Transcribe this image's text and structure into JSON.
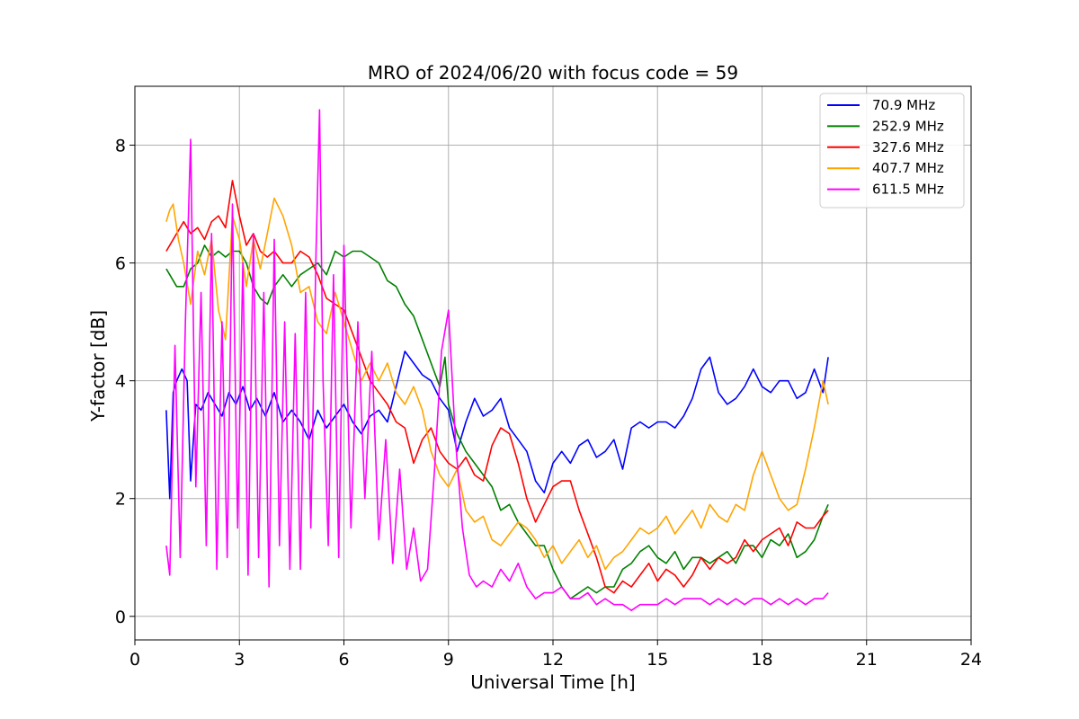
{
  "chart_data": {
    "type": "line",
    "title": "MRO of 2024/06/20 with focus code = 59",
    "xlabel": "Universal Time [h]",
    "ylabel": "Y-factor [dB]",
    "xlim": [
      0,
      24
    ],
    "ylim": [
      -0.4,
      9.0
    ],
    "xticks": [
      0,
      3,
      6,
      9,
      12,
      15,
      18,
      21,
      24
    ],
    "yticks": [
      0,
      2,
      4,
      6,
      8
    ],
    "grid": true,
    "legend": "top-right",
    "series": [
      {
        "name": " 70.9 MHz",
        "color": "#0000ff",
        "x": [
          0.9,
          1.0,
          1.1,
          1.2,
          1.35,
          1.5,
          1.6,
          1.75,
          1.9,
          2.1,
          2.3,
          2.5,
          2.7,
          2.9,
          3.1,
          3.3,
          3.5,
          3.75,
          4.0,
          4.25,
          4.5,
          4.75,
          5.0,
          5.25,
          5.5,
          5.75,
          6.0,
          6.25,
          6.5,
          6.75,
          7.0,
          7.25,
          7.5,
          7.75,
          8.0,
          8.25,
          8.5,
          8.75,
          9.0,
          9.25,
          9.5,
          9.75,
          10.0,
          10.25,
          10.5,
          10.75,
          11.0,
          11.25,
          11.5,
          11.75,
          12.0,
          12.25,
          12.5,
          12.75,
          13.0,
          13.25,
          13.5,
          13.75,
          14.0,
          14.25,
          14.5,
          14.75,
          15.0,
          15.25,
          15.5,
          15.75,
          16.0,
          16.25,
          16.5,
          16.75,
          17.0,
          17.25,
          17.5,
          17.75,
          18.0,
          18.25,
          18.5,
          18.75,
          19.0,
          19.25,
          19.5,
          19.75,
          19.9
        ],
        "y": [
          3.5,
          2.0,
          3.8,
          4.0,
          4.2,
          4.0,
          2.3,
          3.6,
          3.5,
          3.8,
          3.6,
          3.4,
          3.8,
          3.6,
          3.9,
          3.5,
          3.7,
          3.4,
          3.8,
          3.3,
          3.5,
          3.3,
          3.0,
          3.5,
          3.2,
          3.4,
          3.6,
          3.3,
          3.1,
          3.4,
          3.5,
          3.3,
          3.9,
          4.5,
          4.3,
          4.1,
          4.0,
          3.7,
          3.5,
          2.8,
          3.3,
          3.7,
          3.4,
          3.5,
          3.7,
          3.2,
          3.0,
          2.8,
          2.3,
          2.1,
          2.6,
          2.8,
          2.6,
          2.9,
          3.0,
          2.7,
          2.8,
          3.0,
          2.5,
          3.2,
          3.3,
          3.2,
          3.3,
          3.3,
          3.2,
          3.4,
          3.7,
          4.2,
          4.4,
          3.8,
          3.6,
          3.7,
          3.9,
          4.2,
          3.9,
          3.8,
          4.0,
          4.0,
          3.7,
          3.8,
          4.2,
          3.8,
          4.4
        ]
      },
      {
        "name": "252.9 MHz",
        "color": "#008000",
        "x": [
          0.9,
          1.0,
          1.2,
          1.4,
          1.6,
          1.8,
          2.0,
          2.2,
          2.4,
          2.6,
          2.8,
          3.0,
          3.2,
          3.4,
          3.6,
          3.8,
          4.0,
          4.25,
          4.5,
          4.75,
          5.0,
          5.25,
          5.5,
          5.75,
          6.0,
          6.25,
          6.5,
          6.75,
          7.0,
          7.25,
          7.5,
          7.75,
          8.0,
          8.25,
          8.5,
          8.75,
          8.9,
          9.0,
          9.25,
          9.5,
          9.75,
          10.0,
          10.25,
          10.5,
          10.75,
          11.0,
          11.25,
          11.5,
          11.75,
          12.0,
          12.25,
          12.5,
          12.75,
          13.0,
          13.25,
          13.5,
          13.75,
          14.0,
          14.25,
          14.5,
          14.75,
          15.0,
          15.25,
          15.5,
          15.75,
          16.0,
          16.25,
          16.5,
          16.75,
          17.0,
          17.25,
          17.5,
          17.75,
          18.0,
          18.25,
          18.5,
          18.75,
          19.0,
          19.25,
          19.5,
          19.75,
          19.9
        ],
        "y": [
          5.9,
          5.8,
          5.6,
          5.6,
          5.9,
          6.0,
          6.3,
          6.1,
          6.2,
          6.1,
          6.2,
          6.2,
          6.0,
          5.6,
          5.4,
          5.3,
          5.6,
          5.8,
          5.6,
          5.8,
          5.9,
          6.0,
          5.8,
          6.2,
          6.1,
          6.2,
          6.2,
          6.1,
          6.0,
          5.7,
          5.6,
          5.3,
          5.1,
          4.7,
          4.3,
          3.9,
          4.4,
          3.6,
          3.1,
          2.8,
          2.6,
          2.4,
          2.2,
          1.8,
          1.9,
          1.6,
          1.4,
          1.2,
          1.2,
          0.8,
          0.5,
          0.3,
          0.4,
          0.5,
          0.4,
          0.5,
          0.5,
          0.8,
          0.9,
          1.1,
          1.2,
          1.0,
          0.9,
          1.1,
          0.8,
          1.0,
          1.0,
          0.9,
          1.0,
          1.1,
          0.9,
          1.2,
          1.2,
          1.0,
          1.3,
          1.2,
          1.4,
          1.0,
          1.1,
          1.3,
          1.7,
          1.9
        ]
      },
      {
        "name": "327.6 MHz",
        "color": "#ff0000",
        "x": [
          0.9,
          1.0,
          1.2,
          1.4,
          1.6,
          1.8,
          2.0,
          2.2,
          2.4,
          2.6,
          2.8,
          3.0,
          3.2,
          3.4,
          3.6,
          3.8,
          4.0,
          4.25,
          4.5,
          4.75,
          5.0,
          5.25,
          5.5,
          5.75,
          6.0,
          6.25,
          6.5,
          6.75,
          7.0,
          7.25,
          7.5,
          7.75,
          8.0,
          8.25,
          8.5,
          8.75,
          9.0,
          9.25,
          9.5,
          9.75,
          10.0,
          10.25,
          10.5,
          10.75,
          11.0,
          11.25,
          11.5,
          11.75,
          12.0,
          12.25,
          12.5,
          12.75,
          13.0,
          13.25,
          13.5,
          13.75,
          14.0,
          14.25,
          14.5,
          14.75,
          15.0,
          15.25,
          15.5,
          15.75,
          16.0,
          16.25,
          16.5,
          16.75,
          17.0,
          17.25,
          17.5,
          17.75,
          18.0,
          18.25,
          18.5,
          18.75,
          19.0,
          19.25,
          19.5,
          19.75,
          19.9
        ],
        "y": [
          6.2,
          6.3,
          6.5,
          6.7,
          6.5,
          6.6,
          6.4,
          6.7,
          6.8,
          6.6,
          7.4,
          6.8,
          6.3,
          6.5,
          6.2,
          6.1,
          6.2,
          6.0,
          6.0,
          6.2,
          6.1,
          5.8,
          5.4,
          5.3,
          5.2,
          4.8,
          4.4,
          4.0,
          3.8,
          3.6,
          3.3,
          3.2,
          2.6,
          3.0,
          3.2,
          2.8,
          2.6,
          2.5,
          2.7,
          2.4,
          2.3,
          2.9,
          3.2,
          3.1,
          2.6,
          2.0,
          1.6,
          1.9,
          2.2,
          2.3,
          2.3,
          1.8,
          1.4,
          1.0,
          0.5,
          0.4,
          0.6,
          0.5,
          0.7,
          0.9,
          0.6,
          0.8,
          0.7,
          0.5,
          0.7,
          1.0,
          0.8,
          1.0,
          0.9,
          1.0,
          1.3,
          1.1,
          1.3,
          1.4,
          1.5,
          1.2,
          1.6,
          1.5,
          1.5,
          1.7,
          1.8
        ]
      },
      {
        "name": "407.7 MHz",
        "color": "#ffa500",
        "x": [
          0.9,
          1.0,
          1.1,
          1.25,
          1.4,
          1.6,
          1.8,
          2.0,
          2.2,
          2.4,
          2.6,
          2.8,
          3.0,
          3.2,
          3.4,
          3.6,
          3.8,
          4.0,
          4.25,
          4.5,
          4.75,
          5.0,
          5.25,
          5.5,
          5.75,
          6.0,
          6.25,
          6.5,
          6.75,
          7.0,
          7.25,
          7.5,
          7.75,
          8.0,
          8.25,
          8.5,
          8.75,
          9.0,
          9.25,
          9.5,
          9.75,
          10.0,
          10.25,
          10.5,
          10.75,
          11.0,
          11.25,
          11.5,
          11.75,
          12.0,
          12.25,
          12.5,
          12.75,
          13.0,
          13.25,
          13.5,
          13.75,
          14.0,
          14.25,
          14.5,
          14.75,
          15.0,
          15.25,
          15.5,
          15.75,
          16.0,
          16.25,
          16.5,
          16.75,
          17.0,
          17.25,
          17.5,
          17.75,
          18.0,
          18.25,
          18.5,
          18.75,
          19.0,
          19.25,
          19.5,
          19.75,
          19.9
        ],
        "y": [
          6.7,
          6.9,
          7.0,
          6.4,
          6.0,
          5.3,
          6.2,
          5.8,
          6.4,
          5.2,
          4.7,
          6.8,
          6.4,
          5.6,
          6.4,
          5.9,
          6.5,
          7.1,
          6.8,
          6.3,
          5.5,
          5.6,
          5.0,
          4.8,
          5.5,
          5.0,
          4.5,
          4.0,
          4.3,
          4.0,
          4.3,
          3.8,
          3.6,
          3.9,
          3.5,
          2.8,
          2.4,
          2.2,
          2.5,
          1.8,
          1.6,
          1.7,
          1.3,
          1.2,
          1.4,
          1.6,
          1.5,
          1.3,
          1.0,
          1.2,
          0.9,
          1.1,
          1.3,
          1.0,
          1.2,
          0.8,
          1.0,
          1.1,
          1.3,
          1.5,
          1.4,
          1.5,
          1.7,
          1.4,
          1.6,
          1.8,
          1.5,
          1.9,
          1.7,
          1.6,
          1.9,
          1.8,
          2.4,
          2.8,
          2.4,
          2.0,
          1.8,
          1.9,
          2.5,
          3.2,
          4.0,
          3.6
        ]
      },
      {
        "name": "611.5 MHz",
        "color": "#ff00ff",
        "x": [
          0.9,
          1.0,
          1.15,
          1.3,
          1.45,
          1.6,
          1.75,
          1.9,
          2.05,
          2.2,
          2.35,
          2.5,
          2.65,
          2.8,
          2.95,
          3.1,
          3.25,
          3.4,
          3.55,
          3.7,
          3.85,
          4.0,
          4.15,
          4.3,
          4.45,
          4.6,
          4.75,
          4.9,
          5.05,
          5.2,
          5.3,
          5.4,
          5.55,
          5.7,
          5.85,
          6.0,
          6.2,
          6.4,
          6.6,
          6.8,
          7.0,
          7.2,
          7.4,
          7.6,
          7.8,
          8.0,
          8.2,
          8.4,
          8.6,
          8.8,
          9.0,
          9.2,
          9.4,
          9.6,
          9.8,
          10.0,
          10.25,
          10.5,
          10.75,
          11.0,
          11.25,
          11.5,
          11.75,
          12.0,
          12.25,
          12.5,
          12.75,
          13.0,
          13.25,
          13.5,
          13.75,
          14.0,
          14.25,
          14.5,
          14.75,
          15.0,
          15.25,
          15.5,
          15.75,
          16.0,
          16.25,
          16.5,
          16.75,
          17.0,
          17.25,
          17.5,
          17.75,
          18.0,
          18.25,
          18.5,
          18.75,
          19.0,
          19.25,
          19.5,
          19.75,
          19.9
        ],
        "y": [
          1.2,
          0.7,
          4.6,
          1.0,
          5.0,
          8.1,
          2.2,
          5.5,
          1.2,
          6.5,
          0.8,
          5.0,
          1.0,
          7.0,
          1.5,
          6.0,
          0.7,
          6.5,
          1.0,
          5.5,
          0.5,
          6.4,
          1.2,
          5.0,
          0.8,
          4.8,
          0.8,
          5.5,
          1.5,
          6.2,
          8.6,
          4.0,
          1.2,
          5.8,
          1.0,
          6.3,
          1.5,
          5.0,
          2.0,
          4.5,
          1.3,
          3.0,
          0.9,
          2.5,
          0.8,
          1.5,
          0.6,
          0.8,
          2.5,
          4.5,
          5.2,
          3.0,
          1.5,
          0.7,
          0.5,
          0.6,
          0.5,
          0.8,
          0.6,
          0.9,
          0.5,
          0.3,
          0.4,
          0.4,
          0.5,
          0.3,
          0.3,
          0.4,
          0.2,
          0.3,
          0.2,
          0.2,
          0.1,
          0.2,
          0.2,
          0.2,
          0.3,
          0.2,
          0.3,
          0.3,
          0.3,
          0.2,
          0.3,
          0.2,
          0.3,
          0.2,
          0.3,
          0.3,
          0.2,
          0.3,
          0.2,
          0.3,
          0.2,
          0.3,
          0.3,
          0.4
        ]
      }
    ]
  }
}
